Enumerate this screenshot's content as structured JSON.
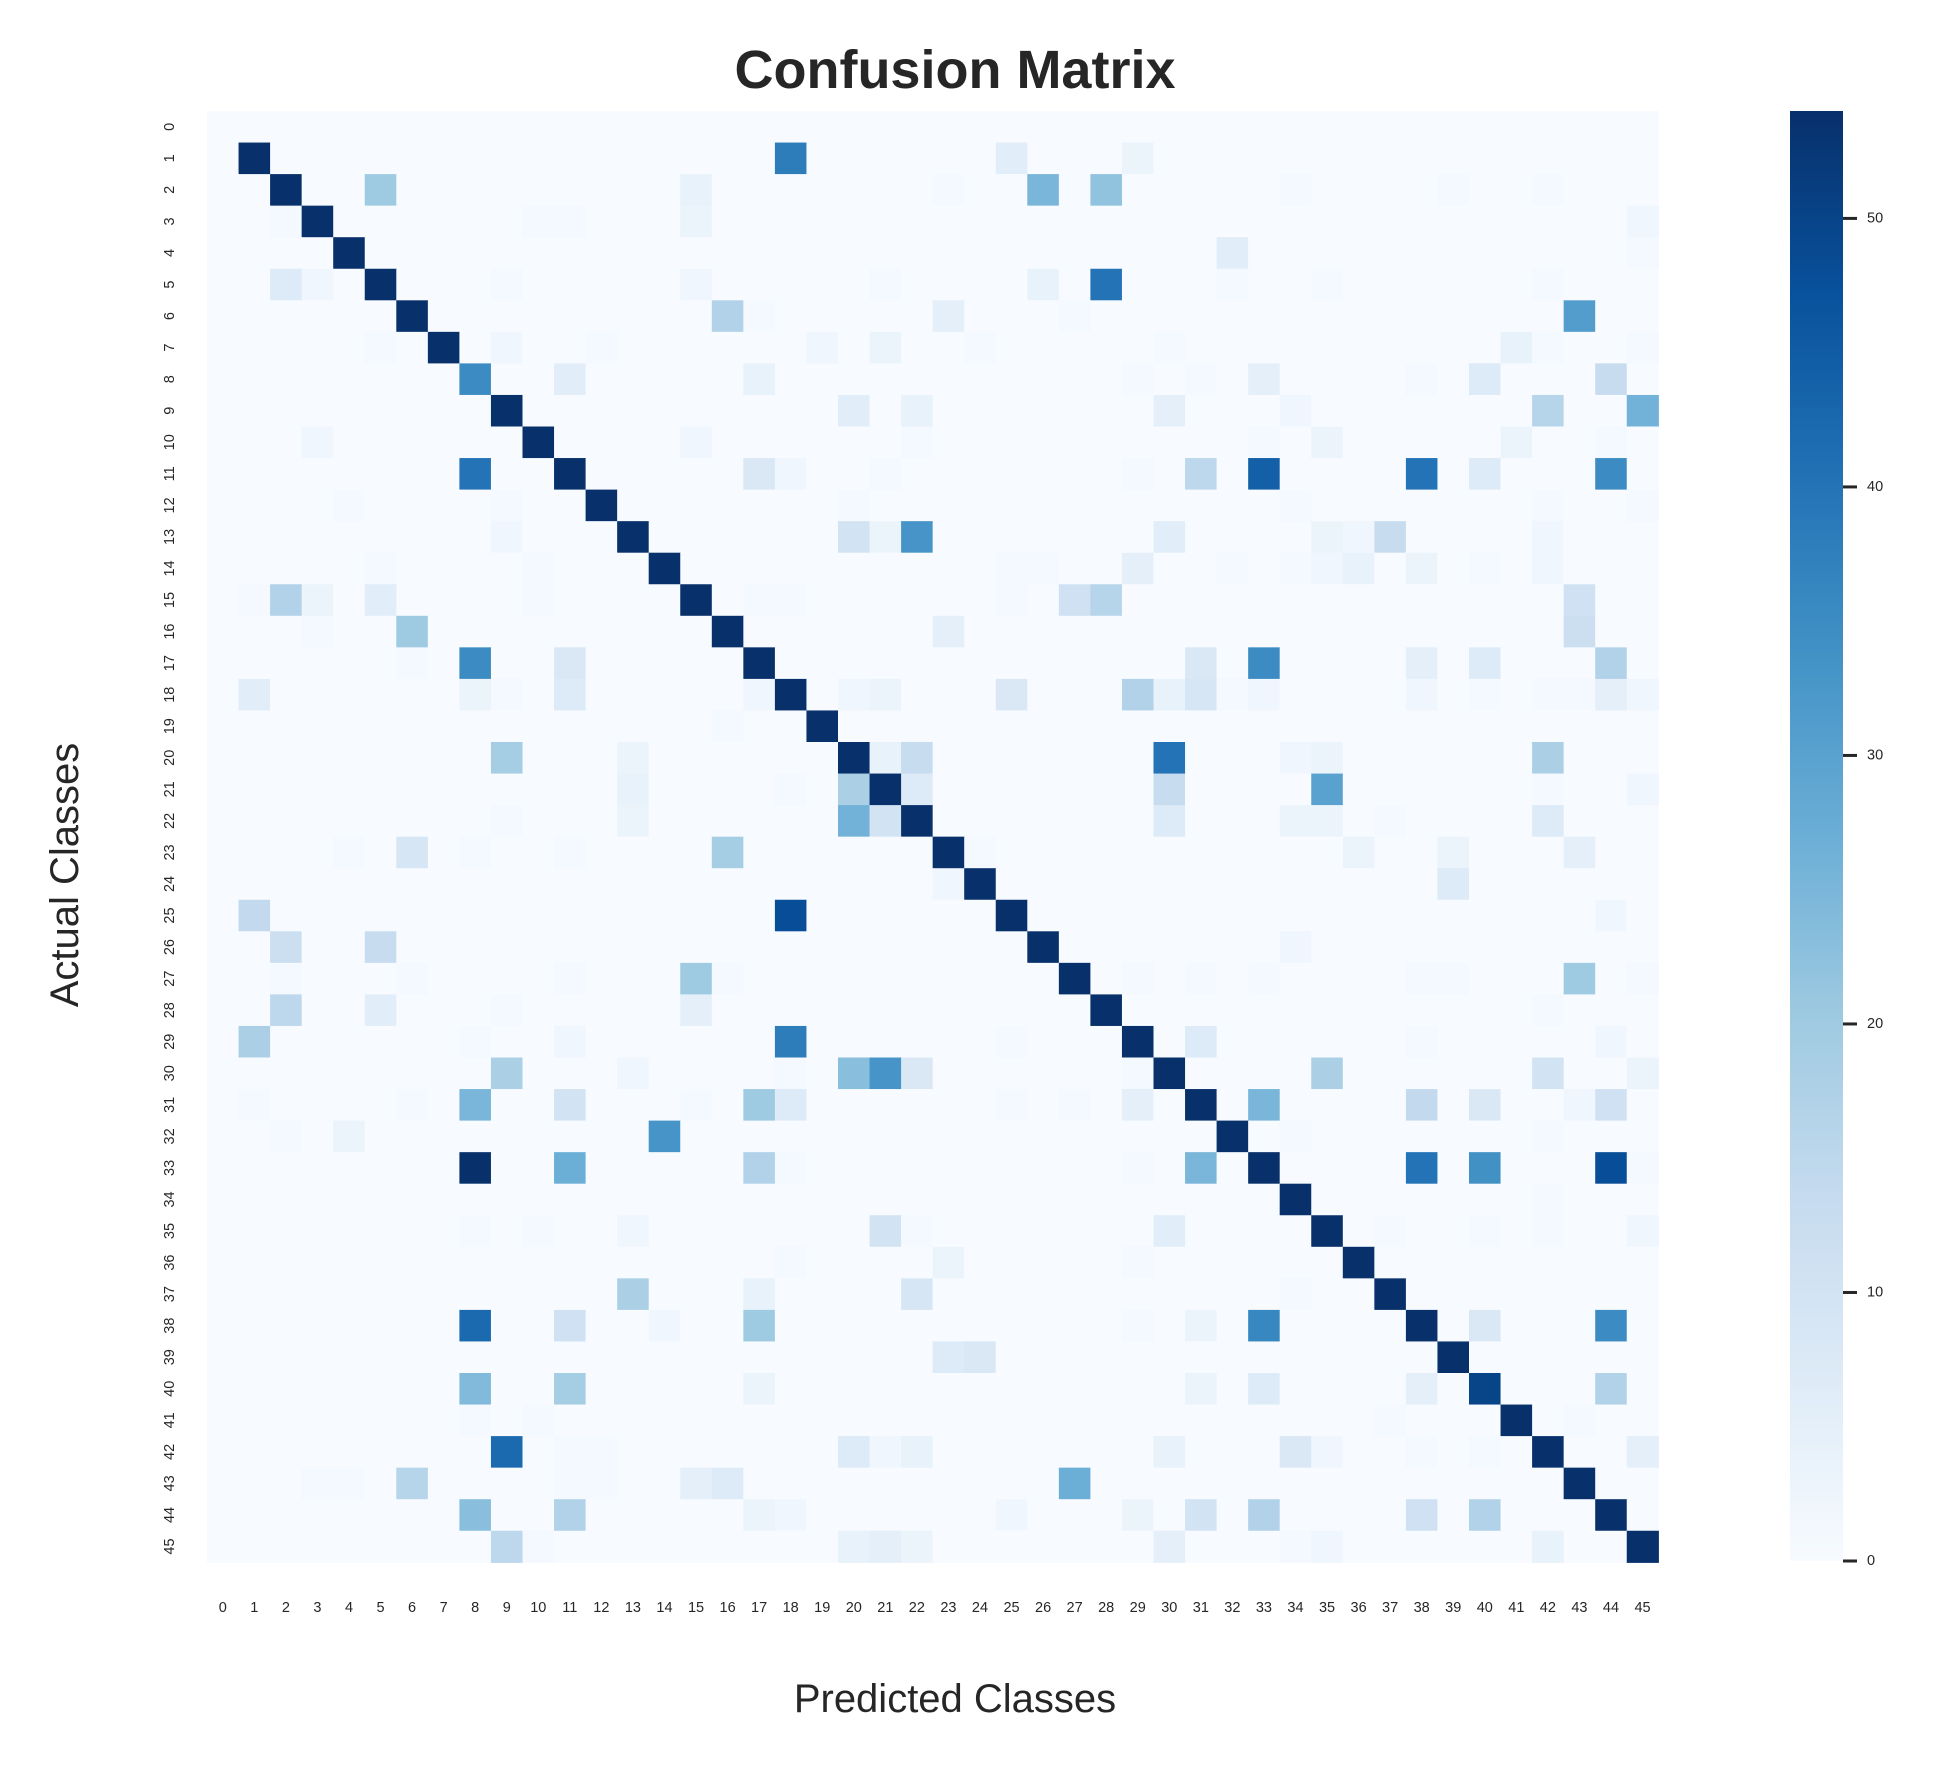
{
  "chart_data": {
    "type": "heatmap",
    "title": "Confusion Matrix",
    "xlabel": "Predicted Classes",
    "ylabel": "Actual Classes",
    "n_classes": 46,
    "x_tick_labels": [
      "0",
      "1",
      "2",
      "3",
      "4",
      "5",
      "6",
      "7",
      "8",
      "9",
      "10",
      "11",
      "12",
      "13",
      "14",
      "15",
      "16",
      "17",
      "18",
      "19",
      "20",
      "21",
      "22",
      "23",
      "24",
      "25",
      "26",
      "27",
      "28",
      "29",
      "30",
      "31",
      "32",
      "33",
      "34",
      "35",
      "36",
      "37",
      "38",
      "39",
      "40",
      "41",
      "42",
      "43",
      "44",
      "45"
    ],
    "y_tick_labels": [
      "0",
      "1",
      "2",
      "3",
      "4",
      "5",
      "6",
      "7",
      "8",
      "9",
      "10",
      "11",
      "12",
      "13",
      "14",
      "15",
      "16",
      "17",
      "18",
      "19",
      "20",
      "21",
      "22",
      "23",
      "24",
      "25",
      "26",
      "27",
      "28",
      "29",
      "30",
      "31",
      "32",
      "33",
      "34",
      "35",
      "36",
      "37",
      "38",
      "39",
      "40",
      "41",
      "42",
      "43",
      "44",
      "45"
    ],
    "colormap": "Blues",
    "color_scale": {
      "min": 0,
      "max": 54
    },
    "colorbar_ticks": [
      0,
      10,
      20,
      30,
      40,
      50
    ],
    "diagonal": [
      0,
      54,
      54,
      54,
      54,
      54,
      54,
      54,
      35,
      54,
      54,
      54,
      54,
      54,
      54,
      54,
      54,
      54,
      54,
      54,
      54,
      54,
      54,
      54,
      54,
      54,
      54,
      54,
      54,
      54,
      54,
      54,
      54,
      54,
      54,
      54,
      54,
      54,
      54,
      54,
      50,
      54,
      54,
      54,
      54,
      54
    ],
    "off_diagonal_cells": [
      [
        1,
        18,
        38
      ],
      [
        1,
        25,
        6
      ],
      [
        1,
        29,
        3
      ],
      [
        2,
        5,
        20
      ],
      [
        2,
        15,
        4
      ],
      [
        2,
        26,
        25
      ],
      [
        2,
        28,
        22
      ],
      [
        2,
        23,
        1
      ],
      [
        2,
        34,
        1
      ],
      [
        2,
        39,
        1
      ],
      [
        2,
        42,
        1
      ],
      [
        3,
        2,
        1
      ],
      [
        3,
        10,
        1
      ],
      [
        3,
        11,
        1
      ],
      [
        3,
        15,
        3
      ],
      [
        3,
        45,
        2
      ],
      [
        4,
        32,
        6
      ],
      [
        4,
        45,
        1
      ],
      [
        5,
        2,
        7
      ],
      [
        5,
        3,
        2
      ],
      [
        5,
        9,
        1
      ],
      [
        5,
        15,
        2
      ],
      [
        5,
        21,
        1
      ],
      [
        5,
        26,
        4
      ],
      [
        5,
        28,
        40
      ],
      [
        5,
        32,
        1
      ],
      [
        5,
        35,
        1
      ],
      [
        5,
        42,
        1
      ],
      [
        6,
        16,
        17
      ],
      [
        6,
        17,
        1
      ],
      [
        6,
        23,
        5
      ],
      [
        6,
        27,
        1
      ],
      [
        6,
        43,
        31
      ],
      [
        7,
        5,
        1
      ],
      [
        7,
        9,
        2
      ],
      [
        7,
        12,
        1
      ],
      [
        7,
        19,
        2
      ],
      [
        7,
        21,
        3
      ],
      [
        7,
        24,
        1
      ],
      [
        7,
        30,
        1
      ],
      [
        7,
        41,
        4
      ],
      [
        7,
        42,
        1
      ],
      [
        7,
        45,
        1
      ],
      [
        8,
        11,
        6
      ],
      [
        8,
        17,
        4
      ],
      [
        8,
        29,
        1
      ],
      [
        8,
        31,
        1
      ],
      [
        8,
        33,
        5
      ],
      [
        8,
        38,
        1
      ],
      [
        8,
        40,
        7
      ],
      [
        8,
        44,
        13
      ],
      [
        9,
        20,
        6
      ],
      [
        9,
        22,
        4
      ],
      [
        9,
        30,
        5
      ],
      [
        9,
        34,
        2
      ],
      [
        9,
        42,
        16
      ],
      [
        9,
        45,
        26
      ],
      [
        10,
        3,
        2
      ],
      [
        10,
        15,
        2
      ],
      [
        10,
        22,
        1
      ],
      [
        10,
        33,
        1
      ],
      [
        10,
        35,
        3
      ],
      [
        10,
        41,
        3
      ],
      [
        10,
        44,
        1
      ],
      [
        11,
        8,
        40
      ],
      [
        11,
        17,
        8
      ],
      [
        11,
        18,
        2
      ],
      [
        11,
        21,
        1
      ],
      [
        11,
        29,
        1
      ],
      [
        11,
        31,
        15
      ],
      [
        11,
        33,
        44
      ],
      [
        11,
        38,
        40
      ],
      [
        11,
        40,
        7
      ],
      [
        11,
        44,
        35
      ],
      [
        12,
        4,
        1
      ],
      [
        12,
        9,
        1
      ],
      [
        12,
        20,
        1
      ],
      [
        12,
        34,
        1
      ],
      [
        12,
        42,
        1
      ],
      [
        12,
        45,
        1
      ],
      [
        13,
        9,
        2
      ],
      [
        13,
        20,
        10
      ],
      [
        13,
        21,
        3
      ],
      [
        13,
        22,
        33
      ],
      [
        13,
        30,
        6
      ],
      [
        13,
        35,
        3
      ],
      [
        13,
        36,
        2
      ],
      [
        13,
        37,
        13
      ],
      [
        13,
        42,
        2
      ],
      [
        14,
        5,
        1
      ],
      [
        14,
        10,
        1
      ],
      [
        14,
        25,
        1
      ],
      [
        14,
        26,
        1
      ],
      [
        14,
        29,
        5
      ],
      [
        14,
        32,
        1
      ],
      [
        14,
        34,
        1
      ],
      [
        14,
        35,
        2
      ],
      [
        14,
        36,
        4
      ],
      [
        14,
        38,
        3
      ],
      [
        14,
        40,
        1
      ],
      [
        14,
        42,
        2
      ],
      [
        15,
        1,
        1
      ],
      [
        15,
        2,
        17
      ],
      [
        15,
        3,
        3
      ],
      [
        15,
        5,
        6
      ],
      [
        15,
        10,
        1
      ],
      [
        15,
        17,
        1
      ],
      [
        15,
        18,
        1
      ],
      [
        15,
        25,
        1
      ],
      [
        15,
        27,
        11
      ],
      [
        15,
        28,
        16
      ],
      [
        15,
        43,
        11
      ],
      [
        16,
        6,
        20
      ],
      [
        16,
        3,
        1
      ],
      [
        16,
        23,
        5
      ],
      [
        16,
        43,
        12
      ],
      [
        17,
        6,
        1
      ],
      [
        17,
        8,
        35
      ],
      [
        17,
        11,
        8
      ],
      [
        17,
        31,
        8
      ],
      [
        17,
        33,
        35
      ],
      [
        17,
        38,
        5
      ],
      [
        17,
        40,
        7
      ],
      [
        17,
        44,
        17
      ],
      [
        18,
        1,
        6
      ],
      [
        18,
        8,
        3
      ],
      [
        18,
        9,
        1
      ],
      [
        18,
        11,
        7
      ],
      [
        18,
        17,
        2
      ],
      [
        18,
        20,
        2
      ],
      [
        18,
        21,
        3
      ],
      [
        18,
        25,
        8
      ],
      [
        18,
        29,
        17
      ],
      [
        18,
        30,
        4
      ],
      [
        18,
        31,
        9
      ],
      [
        18,
        32,
        1
      ],
      [
        18,
        33,
        2
      ],
      [
        18,
        38,
        2
      ],
      [
        18,
        40,
        1
      ],
      [
        18,
        42,
        1
      ],
      [
        18,
        43,
        1
      ],
      [
        18,
        44,
        5
      ],
      [
        18,
        45,
        2
      ],
      [
        19,
        16,
        1
      ],
      [
        20,
        9,
        19
      ],
      [
        20,
        13,
        3
      ],
      [
        20,
        21,
        4
      ],
      [
        20,
        22,
        13
      ],
      [
        20,
        30,
        40
      ],
      [
        20,
        34,
        2
      ],
      [
        20,
        35,
        3
      ],
      [
        20,
        42,
        18
      ],
      [
        21,
        13,
        4
      ],
      [
        21,
        18,
        1
      ],
      [
        21,
        20,
        18
      ],
      [
        21,
        22,
        7
      ],
      [
        21,
        30,
        13
      ],
      [
        21,
        35,
        30
      ],
      [
        21,
        42,
        1
      ],
      [
        21,
        45,
        2
      ],
      [
        22,
        9,
        1
      ],
      [
        22,
        13,
        3
      ],
      [
        22,
        20,
        26
      ],
      [
        22,
        21,
        10
      ],
      [
        22,
        30,
        7
      ],
      [
        22,
        34,
        3
      ],
      [
        22,
        35,
        3
      ],
      [
        22,
        37,
        1
      ],
      [
        22,
        42,
        7
      ],
      [
        23,
        4,
        1
      ],
      [
        23,
        6,
        9
      ],
      [
        23,
        8,
        1
      ],
      [
        23,
        11,
        1
      ],
      [
        23,
        16,
        19
      ],
      [
        23,
        24,
        1
      ],
      [
        23,
        36,
        3
      ],
      [
        23,
        39,
        3
      ],
      [
        23,
        43,
        5
      ],
      [
        24,
        23,
        2
      ],
      [
        24,
        39,
        7
      ],
      [
        25,
        1,
        14
      ],
      [
        25,
        18,
        48
      ],
      [
        25,
        44,
        2
      ],
      [
        26,
        2,
        12
      ],
      [
        26,
        5,
        13
      ],
      [
        26,
        34,
        2
      ],
      [
        27,
        2,
        1
      ],
      [
        27,
        6,
        1
      ],
      [
        27,
        11,
        1
      ],
      [
        27,
        15,
        20
      ],
      [
        27,
        16,
        1
      ],
      [
        27,
        29,
        1
      ],
      [
        27,
        31,
        1
      ],
      [
        27,
        33,
        1
      ],
      [
        27,
        38,
        1
      ],
      [
        27,
        39,
        1
      ],
      [
        27,
        43,
        20
      ],
      [
        27,
        45,
        1
      ],
      [
        28,
        2,
        15
      ],
      [
        28,
        5,
        6
      ],
      [
        28,
        9,
        1
      ],
      [
        28,
        15,
        5
      ],
      [
        28,
        42,
        1
      ],
      [
        29,
        1,
        18
      ],
      [
        29,
        8,
        1
      ],
      [
        29,
        11,
        2
      ],
      [
        29,
        18,
        38
      ],
      [
        29,
        25,
        1
      ],
      [
        29,
        31,
        7
      ],
      [
        29,
        38,
        1
      ],
      [
        29,
        44,
        2
      ],
      [
        30,
        9,
        18
      ],
      [
        30,
        13,
        2
      ],
      [
        30,
        18,
        1
      ],
      [
        30,
        20,
        23
      ],
      [
        30,
        21,
        33
      ],
      [
        30,
        22,
        8
      ],
      [
        30,
        29,
        1
      ],
      [
        30,
        35,
        18
      ],
      [
        30,
        42,
        10
      ],
      [
        30,
        45,
        3
      ],
      [
        31,
        1,
        1
      ],
      [
        31,
        6,
        1
      ],
      [
        31,
        8,
        25
      ],
      [
        31,
        11,
        10
      ],
      [
        31,
        15,
        1
      ],
      [
        31,
        17,
        20
      ],
      [
        31,
        18,
        7
      ],
      [
        31,
        25,
        1
      ],
      [
        31,
        27,
        1
      ],
      [
        31,
        29,
        5
      ],
      [
        31,
        33,
        25
      ],
      [
        31,
        38,
        14
      ],
      [
        31,
        40,
        8
      ],
      [
        31,
        43,
        2
      ],
      [
        31,
        44,
        11
      ],
      [
        32,
        2,
        1
      ],
      [
        32,
        4,
        3
      ],
      [
        32,
        14,
        33
      ],
      [
        32,
        34,
        1
      ],
      [
        32,
        42,
        1
      ],
      [
        33,
        8,
        54
      ],
      [
        33,
        11,
        27
      ],
      [
        33,
        17,
        17
      ],
      [
        33,
        18,
        1
      ],
      [
        33,
        29,
        1
      ],
      [
        33,
        31,
        25
      ],
      [
        33,
        38,
        40
      ],
      [
        33,
        40,
        34
      ],
      [
        33,
        44,
        48
      ],
      [
        33,
        45,
        1
      ],
      [
        34,
        42,
        1
      ],
      [
        35,
        8,
        1
      ],
      [
        35,
        10,
        1
      ],
      [
        35,
        13,
        2
      ],
      [
        35,
        21,
        10
      ],
      [
        35,
        22,
        1
      ],
      [
        35,
        30,
        6
      ],
      [
        35,
        37,
        1
      ],
      [
        35,
        40,
        1
      ],
      [
        35,
        42,
        1
      ],
      [
        35,
        45,
        2
      ],
      [
        36,
        18,
        1
      ],
      [
        36,
        23,
        3
      ],
      [
        36,
        29,
        1
      ],
      [
        37,
        13,
        18
      ],
      [
        37,
        17,
        4
      ],
      [
        37,
        22,
        9
      ],
      [
        37,
        34,
        1
      ],
      [
        38,
        8,
        42
      ],
      [
        38,
        11,
        11
      ],
      [
        38,
        14,
        2
      ],
      [
        38,
        17,
        20
      ],
      [
        38,
        29,
        1
      ],
      [
        38,
        31,
        3
      ],
      [
        38,
        33,
        36
      ],
      [
        38,
        40,
        8
      ],
      [
        38,
        44,
        35
      ],
      [
        39,
        23,
        7
      ],
      [
        39,
        24,
        8
      ],
      [
        40,
        8,
        24
      ],
      [
        40,
        11,
        19
      ],
      [
        40,
        17,
        3
      ],
      [
        40,
        31,
        3
      ],
      [
        40,
        33,
        7
      ],
      [
        40,
        38,
        5
      ],
      [
        40,
        44,
        17
      ],
      [
        41,
        8,
        1
      ],
      [
        41,
        10,
        1
      ],
      [
        41,
        37,
        1
      ],
      [
        41,
        43,
        1
      ],
      [
        42,
        9,
        42
      ],
      [
        42,
        11,
        1
      ],
      [
        42,
        12,
        1
      ],
      [
        42,
        20,
        7
      ],
      [
        42,
        21,
        2
      ],
      [
        42,
        22,
        4
      ],
      [
        42,
        30,
        4
      ],
      [
        42,
        34,
        8
      ],
      [
        42,
        35,
        2
      ],
      [
        42,
        38,
        1
      ],
      [
        42,
        40,
        1
      ],
      [
        42,
        45,
        5
      ],
      [
        43,
        3,
        1
      ],
      [
        43,
        4,
        1
      ],
      [
        43,
        6,
        16
      ],
      [
        43,
        11,
        1
      ],
      [
        43,
        12,
        1
      ],
      [
        43,
        15,
        5
      ],
      [
        43,
        16,
        7
      ],
      [
        43,
        27,
        27
      ],
      [
        44,
        8,
        23
      ],
      [
        44,
        11,
        17
      ],
      [
        44,
        17,
        3
      ],
      [
        44,
        18,
        2
      ],
      [
        44,
        25,
        2
      ],
      [
        44,
        29,
        3
      ],
      [
        44,
        31,
        10
      ],
      [
        44,
        33,
        17
      ],
      [
        44,
        38,
        11
      ],
      [
        44,
        40,
        17
      ],
      [
        45,
        9,
        15
      ],
      [
        45,
        10,
        1
      ],
      [
        45,
        20,
        4
      ],
      [
        45,
        21,
        5
      ],
      [
        45,
        22,
        3
      ],
      [
        45,
        30,
        5
      ],
      [
        45,
        34,
        1
      ],
      [
        45,
        35,
        2
      ],
      [
        45,
        42,
        4
      ]
    ]
  }
}
